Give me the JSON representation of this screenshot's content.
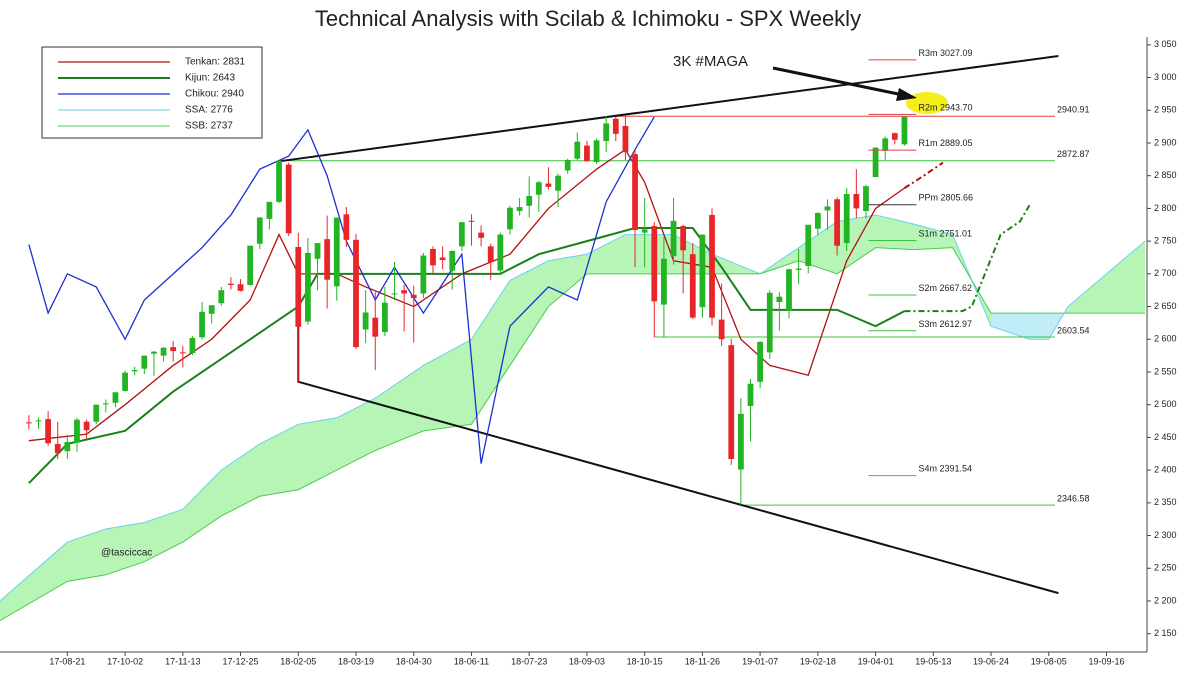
{
  "chart_data": {
    "type": "candlestick",
    "title": "Technical Analysis with Scilab & Ichimoku - SPX Weekly",
    "up_color": "#22b422",
    "down_color": "#e8262a",
    "xlim": [
      "17-07-03",
      "19-10-14"
    ],
    "ylim": [
      2122,
      3062
    ],
    "xticks": [
      "17-08-21",
      "17-10-02",
      "17-11-13",
      "17-12-25",
      "18-02-05",
      "18-03-19",
      "18-04-30",
      "18-06-11",
      "18-07-23",
      "18-09-03",
      "18-10-15",
      "18-11-26",
      "19-01-07",
      "19-02-18",
      "19-04-01",
      "19-05-13",
      "19-06-24",
      "19-08-05",
      "19-09-16"
    ],
    "yticks": [
      {
        "value": 2150,
        "label": "2 150"
      },
      {
        "value": 2200,
        "label": "2 200"
      },
      {
        "value": 2250,
        "label": "2 250"
      },
      {
        "value": 2300,
        "label": "2 300"
      },
      {
        "value": 2350,
        "label": "2 350"
      },
      {
        "value": 2400,
        "label": "2 400"
      },
      {
        "value": 2450,
        "label": "2 450"
      },
      {
        "value": 2500,
        "label": "2 500"
      },
      {
        "value": 2550,
        "label": "2 550"
      },
      {
        "value": 2600,
        "label": "2 600"
      },
      {
        "value": 2650,
        "label": "2 650"
      },
      {
        "value": 2700,
        "label": "2 700"
      },
      {
        "value": 2750,
        "label": "2 750"
      },
      {
        "value": 2800,
        "label": "2 800"
      },
      {
        "value": 2850,
        "label": "2 850"
      },
      {
        "value": 2900,
        "label": "2 900"
      },
      {
        "value": 2950,
        "label": "2 950"
      },
      {
        "value": 3000,
        "label": "3 000"
      },
      {
        "value": 3050,
        "label": "3 050"
      }
    ],
    "x": [
      "17-07-24",
      "17-07-31",
      "17-08-07",
      "17-08-14",
      "17-08-21",
      "17-08-28",
      "17-09-04",
      "17-09-11",
      "17-09-18",
      "17-09-25",
      "17-10-02",
      "17-10-09",
      "17-10-16",
      "17-10-23",
      "17-10-30",
      "17-11-06",
      "17-11-13",
      "17-11-20",
      "17-11-27",
      "17-12-04",
      "17-12-11",
      "17-12-18",
      "17-12-25",
      "18-01-01",
      "18-01-08",
      "18-01-15",
      "18-01-22",
      "18-01-29",
      "18-02-05",
      "18-02-12",
      "18-02-19",
      "18-02-26",
      "18-03-05",
      "18-03-12",
      "18-03-19",
      "18-03-26",
      "18-04-02",
      "18-04-09",
      "18-04-16",
      "18-04-23",
      "18-04-30",
      "18-05-07",
      "18-05-14",
      "18-05-21",
      "18-05-28",
      "18-06-04",
      "18-06-11",
      "18-06-18",
      "18-06-25",
      "18-07-02",
      "18-07-09",
      "18-07-16",
      "18-07-23",
      "18-07-30",
      "18-08-06",
      "18-08-13",
      "18-08-20",
      "18-08-27",
      "18-09-03",
      "18-09-10",
      "18-09-17",
      "18-09-24",
      "18-10-01",
      "18-10-08",
      "18-10-15",
      "18-10-22",
      "18-10-29",
      "18-11-05",
      "18-11-12",
      "18-11-19",
      "18-11-26",
      "18-12-03",
      "18-12-10",
      "18-12-17",
      "18-12-24",
      "18-12-31",
      "19-01-07",
      "19-01-14",
      "19-01-21",
      "19-01-28",
      "19-02-04",
      "19-02-11",
      "19-02-18",
      "19-02-25",
      "19-03-04",
      "19-03-11",
      "19-03-18",
      "19-03-25",
      "19-04-01",
      "19-04-08",
      "19-04-15",
      "19-04-22"
    ],
    "open": [
      2473,
      2475,
      2478,
      2440,
      2429,
      2442,
      2474,
      2474,
      2502,
      2503,
      2521,
      2551,
      2555,
      2578,
      2575,
      2588,
      2580,
      2579,
      2603,
      2639,
      2655,
      2685,
      2684,
      2683,
      2746,
      2784,
      2810,
      2867,
      2741,
      2627,
      2723,
      2753,
      2681,
      2791,
      2752,
      2615,
      2633,
      2611,
      2670,
      2675,
      2668,
      2670,
      2738,
      2725,
      2705,
      2742,
      2781,
      2763,
      2742,
      2705,
      2768,
      2796,
      2804,
      2821,
      2838,
      2827,
      2858,
      2876,
      2896,
      2871,
      2903,
      2937,
      2926,
      2883,
      2763,
      2773,
      2653,
      2727,
      2773,
      2730,
      2649,
      2790,
      2630,
      2591,
      2401,
      2498,
      2535,
      2580,
      2657,
      2644,
      2706,
      2712,
      2769,
      2797,
      2814,
      2747,
      2822,
      2796,
      2848,
      2888,
      2915,
      2898
    ],
    "high": [
      2484,
      2480,
      2490,
      2474,
      2454,
      2480,
      2477,
      2500,
      2508,
      2519,
      2552,
      2558,
      2575,
      2582,
      2588,
      2597,
      2590,
      2605,
      2657,
      2652,
      2680,
      2695,
      2692,
      2743,
      2787,
      2810,
      2873,
      2870,
      2763,
      2755,
      2747,
      2789,
      2786,
      2802,
      2761,
      2675,
      2672,
      2680,
      2718,
      2683,
      2682,
      2732,
      2742,
      2742,
      2736,
      2779,
      2791,
      2774,
      2746,
      2763,
      2804,
      2816,
      2849,
      2842,
      2863,
      2853,
      2876,
      2916,
      2903,
      2907,
      2941,
      2940,
      2940,
      2889,
      2816,
      2779,
      2756,
      2816,
      2775,
      2747,
      2760,
      2800,
      2685,
      2601,
      2510,
      2539,
      2597,
      2675,
      2672,
      2708,
      2738,
      2775,
      2794,
      2814,
      2817,
      2831,
      2860,
      2836,
      2893,
      2910,
      2916,
      2940
    ],
    "low": [
      2462,
      2463,
      2437,
      2417,
      2417,
      2428,
      2446,
      2470,
      2488,
      2496,
      2520,
      2545,
      2547,
      2544,
      2566,
      2566,
      2557,
      2576,
      2600,
      2624,
      2651,
      2676,
      2673,
      2682,
      2738,
      2768,
      2808,
      2758,
      2533,
      2622,
      2675,
      2647,
      2659,
      2741,
      2585,
      2594,
      2553,
      2605,
      2660,
      2612,
      2595,
      2663,
      2701,
      2707,
      2676,
      2735,
      2743,
      2742,
      2691,
      2698,
      2760,
      2789,
      2786,
      2795,
      2829,
      2802,
      2853,
      2874,
      2872,
      2868,
      2886,
      2903,
      2874,
      2710,
      2710,
      2603,
      2603,
      2714,
      2670,
      2631,
      2633,
      2621,
      2590,
      2408,
      2347,
      2444,
      2525,
      2570,
      2613,
      2632,
      2684,
      2701,
      2759,
      2767,
      2728,
      2735,
      2785,
      2785,
      2848,
      2873,
      2898,
      2896
    ],
    "close": [
      2472,
      2476,
      2441,
      2426,
      2443,
      2477,
      2461,
      2500,
      2502,
      2519,
      2549,
      2553,
      2575,
      2581,
      2587,
      2582,
      2579,
      2602,
      2642,
      2652,
      2675,
      2683,
      2674,
      2743,
      2786,
      2810,
      2873,
      2762,
      2619,
      2732,
      2747,
      2691,
      2786,
      2752,
      2588,
      2641,
      2604,
      2656,
      2670,
      2670,
      2663,
      2728,
      2713,
      2721,
      2735,
      2779,
      2780,
      2755,
      2718,
      2760,
      2801,
      2802,
      2819,
      2840,
      2833,
      2850,
      2874,
      2902,
      2872,
      2904,
      2930,
      2914,
      2886,
      2767,
      2768,
      2658,
      2723,
      2781,
      2736,
      2633,
      2760,
      2633,
      2600,
      2417,
      2486,
      2532,
      2596,
      2671,
      2665,
      2707,
      2708,
      2775,
      2793,
      2803,
      2743,
      2822,
      2800,
      2834,
      2893,
      2907,
      2905,
      2940
    ],
    "series": [
      {
        "name": "Tenkan: 2831",
        "color": "#b01010",
        "x": [
          "17-07-24",
          "17-09-04",
          "17-10-02",
          "17-11-06",
          "17-12-04",
          "18-01-01",
          "18-01-22",
          "18-02-05",
          "18-03-05",
          "18-03-26",
          "18-04-30",
          "18-06-04",
          "18-07-09",
          "18-08-06",
          "18-09-10",
          "18-10-01",
          "18-10-15",
          "18-11-05",
          "18-12-03",
          "18-12-24",
          "19-01-14",
          "19-02-11",
          "19-03-11",
          "19-04-01",
          "19-04-22",
          "19-05-06",
          "19-05-20"
        ],
        "values": [
          2445,
          2455,
          2500,
          2560,
          2600,
          2660,
          2760,
          2700,
          2700,
          2680,
          2650,
          2700,
          2730,
          2800,
          2860,
          2890,
          2840,
          2720,
          2710,
          2600,
          2560,
          2545,
          2720,
          2800,
          2831,
          2850,
          2870
        ]
      },
      {
        "name": "Kijun: 2643",
        "color": "#1a801a",
        "x": [
          "17-07-24",
          "17-08-21",
          "17-10-02",
          "17-11-06",
          "17-12-04",
          "18-01-01",
          "18-01-29",
          "18-02-05",
          "18-02-19",
          "18-04-02",
          "18-07-02",
          "18-07-30",
          "18-09-03",
          "18-10-08",
          "18-11-19",
          "18-12-10",
          "18-12-31",
          "19-03-04",
          "19-04-01",
          "19-04-22",
          "19-06-03",
          "19-06-10",
          "19-07-01",
          "19-07-15",
          "19-07-22"
        ],
        "values": [
          2380,
          2440,
          2460,
          2520,
          2560,
          2600,
          2640,
          2650,
          2700,
          2700,
          2700,
          2730,
          2750,
          2770,
          2770,
          2710,
          2645,
          2645,
          2620,
          2643,
          2643,
          2650,
          2760,
          2780,
          2805
        ]
      },
      {
        "name": "Chikou: 2940",
        "color": "#1c2fd0",
        "x": [
          "17-07-24",
          "17-08-07",
          "17-08-21",
          "17-09-11",
          "17-10-02",
          "17-10-16",
          "17-11-06",
          "17-11-27",
          "17-12-18",
          "18-01-08",
          "18-01-29",
          "18-02-12",
          "18-02-26",
          "18-03-12",
          "18-04-02",
          "18-04-16",
          "18-05-07",
          "18-06-04",
          "18-06-18",
          "18-07-09",
          "18-08-06",
          "18-08-27",
          "18-09-17",
          "18-10-08",
          "18-10-22"
        ],
        "values": [
          2745,
          2640,
          2700,
          2680,
          2600,
          2660,
          2700,
          2740,
          2790,
          2860,
          2880,
          2920,
          2850,
          2750,
          2660,
          2710,
          2640,
          2730,
          2410,
          2620,
          2680,
          2660,
          2810,
          2890,
          2940
        ]
      }
    ],
    "cloud": {
      "x": [
        "17-07-03",
        "17-08-21",
        "17-09-18",
        "17-10-16",
        "17-11-13",
        "17-12-11",
        "18-01-08",
        "18-02-05",
        "18-03-05",
        "18-04-02",
        "18-05-07",
        "18-06-11",
        "18-07-09",
        "18-08-06",
        "18-09-03",
        "18-10-01",
        "18-11-05",
        "18-12-03",
        "19-01-07",
        "19-02-04",
        "19-03-04",
        "19-04-01",
        "19-04-29",
        "19-05-27",
        "19-06-24",
        "19-07-22",
        "19-08-05",
        "19-08-19",
        "19-09-16",
        "19-10-14"
      ],
      "ssa": {
        "name": "SSA: 2776",
        "color": "#6fcfee",
        "values": [
          2200,
          2290,
          2310,
          2320,
          2340,
          2400,
          2440,
          2470,
          2480,
          2510,
          2560,
          2600,
          2690,
          2720,
          2730,
          2760,
          2760,
          2730,
          2700,
          2740,
          2780,
          2790,
          2776,
          2760,
          2620,
          2600,
          2600,
          2650,
          2700,
          2750
        ]
      },
      "ssb": {
        "name": "SSB: 2737",
        "color": "#4ccc4c",
        "values": [
          2170,
          2230,
          2240,
          2260,
          2290,
          2330,
          2360,
          2370,
          2400,
          2430,
          2460,
          2470,
          2560,
          2650,
          2700,
          2700,
          2700,
          2700,
          2700,
          2720,
          2700,
          2740,
          2737,
          2740,
          2640,
          2640,
          2640,
          2640,
          2640,
          2640
        ]
      },
      "up_color": "#b6f5b6",
      "down_color": "#c0ecf7"
    },
    "levels": [
      {
        "label": "2940.91",
        "value": 2940.91,
        "from": "18-09-24",
        "color": "#e24040"
      },
      {
        "label": "2872.87",
        "value": 2872.87,
        "from": "18-01-22",
        "color": "#3cc43c"
      },
      {
        "label": "2603.54",
        "value": 2603.54,
        "from": "18-10-22",
        "color": "#3cc43c"
      },
      {
        "label": "2346.58",
        "value": 2346.58,
        "from": "18-12-24",
        "color": "#3cc43c"
      }
    ],
    "pivots": [
      {
        "name": "R3m",
        "label": "3027.09",
        "value": 3027.09,
        "color": "#e24040"
      },
      {
        "name": "R2m",
        "label": "2943.70",
        "value": 2943.7,
        "color": "#e24040"
      },
      {
        "name": "R1m",
        "label": "2889.05",
        "value": 2889.05,
        "color": "#e24040"
      },
      {
        "name": "PPm",
        "label": "2805.66",
        "value": 2805.66,
        "color": "#333333"
      },
      {
        "name": "S1m",
        "label": "2751.01",
        "value": 2751.01,
        "color": "#3cc43c"
      },
      {
        "name": "S2m",
        "label": "2667.62",
        "value": 2667.62,
        "color": "#3cc43c"
      },
      {
        "name": "S3m",
        "label": "2612.97",
        "value": 2612.97,
        "color": "#3cc43c"
      },
      {
        "name": "S4m",
        "label": "2391.54",
        "value": 2391.54,
        "color": "#3cc43c"
      }
    ],
    "trendlines": [
      {
        "color": "#111111",
        "x": [
          "18-01-22",
          "19-08-12"
        ],
        "values": [
          2872,
          3033
        ]
      },
      {
        "color": "#111111",
        "x": [
          "18-02-05",
          "18-02-05",
          "19-08-12"
        ],
        "values": [
          2700,
          2535,
          2212
        ]
      }
    ],
    "annotations": [
      "3K #MAGA",
      "@tasciccac"
    ]
  }
}
